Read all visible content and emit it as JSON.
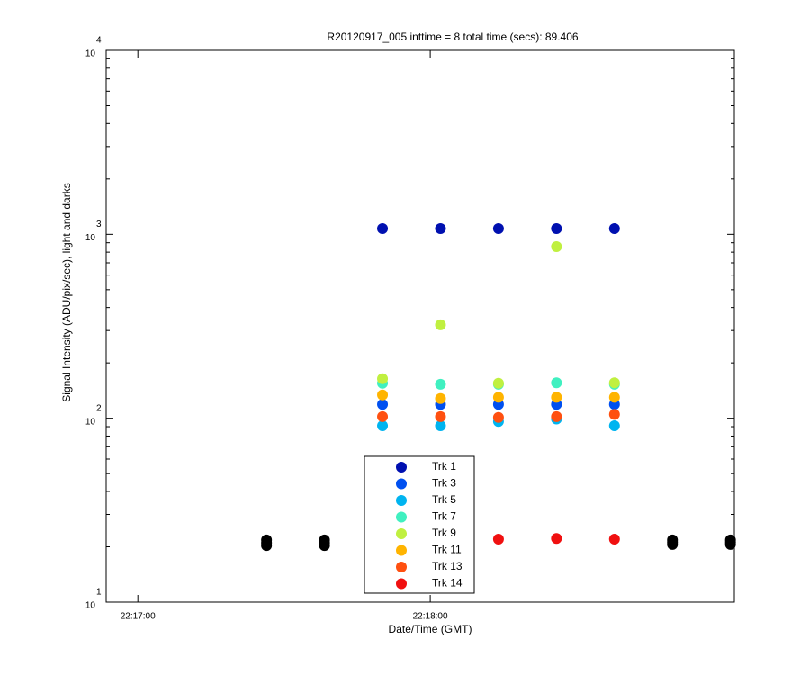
{
  "chart_data": {
    "type": "scatter",
    "title": "R20120917_005 inttime = 8 total time (secs): 89.406",
    "x_label": "Date/Time (GMT)",
    "y_label": "Signal Intensity (ADU/pix/sec), light and darks",
    "y_log": true,
    "xlim": [
      "22:16:53.5",
      "22:19:02.4"
    ],
    "xticks": [
      "22:17:00",
      "22:18:00"
    ],
    "ylim": [
      10,
      10000
    ],
    "yticks": [
      {
        "value": 10,
        "label": "10",
        "sup": "1"
      },
      {
        "value": 100,
        "label": "10",
        "sup": "2"
      },
      {
        "value": 1000,
        "label": "10",
        "sup": "3"
      },
      {
        "value": 10000,
        "label": "10",
        "sup": "4"
      }
    ],
    "series": [
      {
        "color": "#000000",
        "x": [
          "22:17:26.4",
          "22:17:26.4",
          "22:17:26.4",
          "22:17:38.3",
          "22:17:38.3",
          "22:17:38.3",
          "22:18:49.7",
          "22:18:49.7",
          "22:18:49.7",
          "22:19:01.6",
          "22:19:01.6",
          "22:19:01.6"
        ],
        "values": [
          20.3,
          21.0,
          21.8,
          20.3,
          21.0,
          21.8,
          20.6,
          21.2,
          21.8,
          20.6,
          21.2,
          21.8
        ]
      },
      {
        "name": "Trk 1",
        "color": "#0010b0",
        "x": [
          "22:17:50.2",
          "22:18:02.1",
          "22:18:14.0",
          "22:18:25.9",
          "22:18:37.8"
        ],
        "values": [
          1074,
          1074,
          1074,
          1074,
          1074
        ]
      },
      {
        "name": "Trk 3",
        "color": "#0050f0",
        "x": [
          "22:17:50.2",
          "22:18:02.1",
          "22:18:14.0",
          "22:18:25.9",
          "22:18:37.8"
        ],
        "values": [
          119,
          119,
          119,
          119,
          119
        ]
      },
      {
        "name": "Trk 5",
        "color": "#00b4f0",
        "x": [
          "22:17:50.2",
          "22:18:02.1",
          "22:18:14.0",
          "22:18:25.9",
          "22:18:37.8"
        ],
        "values": [
          91,
          91,
          96,
          99,
          91
        ]
      },
      {
        "name": "Trk 7",
        "color": "#40f0c0",
        "x": [
          "22:17:50.2",
          "22:18:02.1",
          "22:18:14.0",
          "22:18:25.9",
          "22:18:37.8"
        ],
        "values": [
          155,
          153,
          153,
          156,
          153
        ]
      },
      {
        "name": "Trk 9",
        "color": "#c0f040",
        "x": [
          "22:17:50.2",
          "22:18:02.1",
          "22:18:14.0",
          "22:18:25.9",
          "22:18:37.8"
        ],
        "values": [
          164,
          322,
          155,
          857,
          156
        ]
      },
      {
        "name": "Trk 11",
        "color": "#ffb400",
        "x": [
          "22:17:50.2",
          "22:18:02.1",
          "22:18:14.0",
          "22:18:25.9",
          "22:18:37.8"
        ],
        "values": [
          134,
          128,
          130,
          130,
          130
        ]
      },
      {
        "name": "Trk 13",
        "color": "#ff5010",
        "x": [
          "22:17:50.2",
          "22:18:02.1",
          "22:18:14.0",
          "22:18:25.9",
          "22:18:37.8"
        ],
        "values": [
          102,
          102,
          101,
          102,
          105
        ]
      },
      {
        "name": "Trk 14",
        "color": "#f01010",
        "x": [
          "22:18:14.0",
          "22:18:25.9",
          "22:18:37.8"
        ],
        "values": [
          22.0,
          22.2,
          22.0
        ]
      }
    ]
  }
}
